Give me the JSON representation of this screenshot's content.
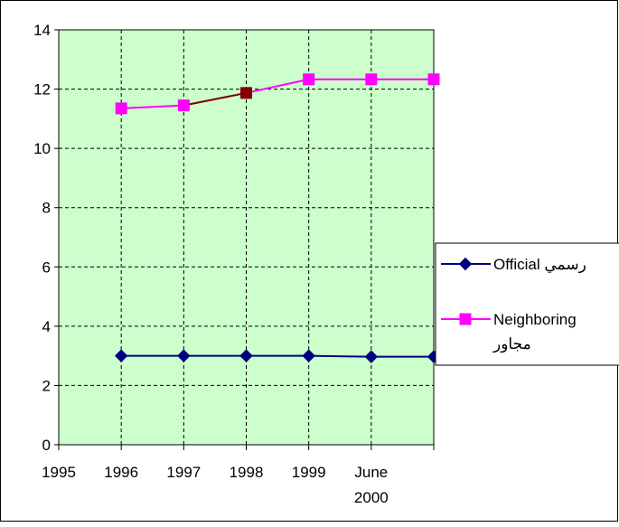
{
  "chart_data": {
    "type": "line",
    "categories": [
      "1995",
      "1996",
      "1997",
      "1998",
      "1999",
      "June 2000"
    ],
    "category_lines": [
      [
        "1995"
      ],
      [
        "1996"
      ],
      [
        "1997"
      ],
      [
        "1998"
      ],
      [
        "1999"
      ],
      [
        "June",
        "2000"
      ]
    ],
    "series": [
      {
        "name": "Official رسمي",
        "label_lines": [
          "Official رسمي"
        ],
        "values": [
          3.0,
          3.0,
          3.0,
          3.0,
          2.97,
          2.97
        ],
        "color": "#000080",
        "marker": "diamond"
      },
      {
        "name": "Neighboring مجاور",
        "label_lines": [
          "Neighboring",
          "مجاور"
        ],
        "values": [
          11.35,
          11.45,
          11.87,
          12.33,
          12.33,
          12.33
        ],
        "color": "#ff00ff",
        "marker": "square",
        "highlight": {
          "from_index": 1,
          "to_index": 2,
          "color": "#800000"
        }
      }
    ],
    "ylim": [
      0,
      14
    ],
    "yticks": [
      "0",
      "2",
      "4",
      "6",
      "8",
      "10",
      "12",
      "14"
    ],
    "grid": true,
    "plot_background": "#ccffcc",
    "legend_position": "right",
    "title": "",
    "xlabel": "",
    "ylabel": ""
  }
}
